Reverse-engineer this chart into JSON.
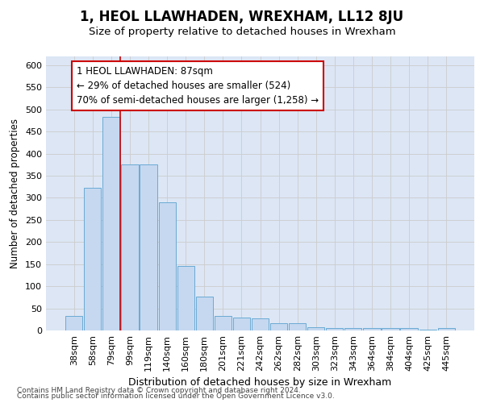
{
  "title": "1, HEOL LLAWHADEN, WREXHAM, LL12 8JU",
  "subtitle": "Size of property relative to detached houses in Wrexham",
  "xlabel": "Distribution of detached houses by size in Wrexham",
  "ylabel": "Number of detached properties",
  "categories": [
    "38sqm",
    "58sqm",
    "79sqm",
    "99sqm",
    "119sqm",
    "140sqm",
    "160sqm",
    "180sqm",
    "201sqm",
    "221sqm",
    "242sqm",
    "262sqm",
    "282sqm",
    "303sqm",
    "323sqm",
    "343sqm",
    "364sqm",
    "384sqm",
    "404sqm",
    "425sqm",
    "445sqm"
  ],
  "values": [
    32,
    322,
    484,
    376,
    376,
    290,
    145,
    77,
    33,
    30,
    28,
    16,
    16,
    8,
    5,
    5,
    5,
    5,
    5,
    2,
    5
  ],
  "bar_color": "#c5d8f0",
  "bar_edgecolor": "#6aaad4",
  "grid_color": "#cccccc",
  "background_color": "#dce6f5",
  "annotation_box_facecolor": "#ffffff",
  "annotation_border_color": "#cc0000",
  "red_line_x": 2.5,
  "annotation_line0": "1 HEOL LLAWHADEN: 87sqm",
  "annotation_line1": "← 29% of detached houses are smaller (524)",
  "annotation_line2": "70% of semi-detached houses are larger (1,258) →",
  "ylim": [
    0,
    620
  ],
  "yticks": [
    0,
    50,
    100,
    150,
    200,
    250,
    300,
    350,
    400,
    450,
    500,
    550,
    600
  ],
  "footer1": "Contains HM Land Registry data © Crown copyright and database right 2024.",
  "footer2": "Contains public sector information licensed under the Open Government Licence v3.0.",
  "title_fontsize": 12,
  "subtitle_fontsize": 9.5,
  "ylabel_fontsize": 8.5,
  "xlabel_fontsize": 9,
  "tick_fontsize": 8,
  "annotation_fontsize": 8.5,
  "footer_fontsize": 6.5
}
